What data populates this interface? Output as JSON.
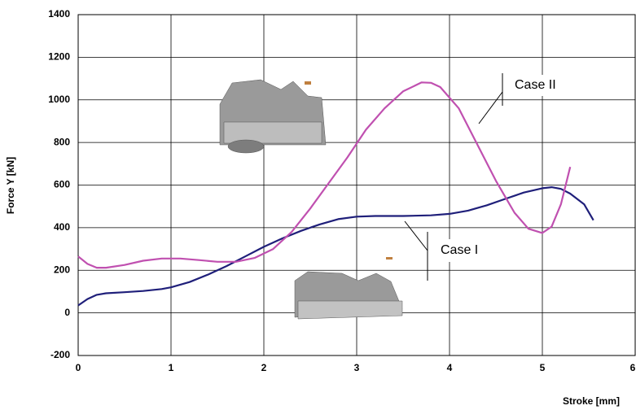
{
  "chart_data": {
    "type": "line",
    "x_label": "Stroke [mm]",
    "y_label": "Force Y [kN]",
    "xlim": [
      0,
      6
    ],
    "xticks": [
      0,
      1,
      2,
      3,
      4,
      5,
      6
    ],
    "ylim": [
      -200,
      1400
    ],
    "yticks": [
      -200,
      0,
      200,
      400,
      600,
      800,
      1000,
      1200,
      1400
    ],
    "grid": true,
    "series": [
      {
        "name": "Case I",
        "color": "#1f1f7a",
        "x": [
          0,
          0.1,
          0.2,
          0.3,
          0.5,
          0.7,
          0.9,
          1.0,
          1.2,
          1.4,
          1.6,
          1.8,
          2.0,
          2.2,
          2.4,
          2.6,
          2.8,
          3.0,
          3.2,
          3.5,
          3.8,
          4.0,
          4.2,
          4.4,
          4.6,
          4.8,
          5.0,
          5.1,
          5.2,
          5.3,
          5.45,
          5.55
        ],
        "values": [
          35,
          65,
          85,
          92,
          97,
          103,
          112,
          120,
          145,
          180,
          220,
          265,
          310,
          350,
          385,
          415,
          440,
          452,
          455,
          455,
          458,
          465,
          480,
          505,
          535,
          565,
          585,
          590,
          582,
          560,
          510,
          435
        ]
      },
      {
        "name": "Case II",
        "color": "#c050b0",
        "x": [
          0,
          0.1,
          0.2,
          0.3,
          0.5,
          0.7,
          0.9,
          1.1,
          1.3,
          1.5,
          1.7,
          1.9,
          2.1,
          2.3,
          2.5,
          2.7,
          2.9,
          3.1,
          3.3,
          3.5,
          3.7,
          3.8,
          3.9,
          4.1,
          4.3,
          4.5,
          4.7,
          4.85,
          5.0,
          5.1,
          5.2,
          5.3
        ],
        "values": [
          265,
          230,
          212,
          212,
          225,
          245,
          255,
          255,
          248,
          240,
          240,
          258,
          300,
          380,
          490,
          610,
          730,
          860,
          960,
          1040,
          1082,
          1080,
          1060,
          960,
          790,
          620,
          470,
          395,
          375,
          405,
          510,
          685
        ]
      }
    ]
  }
}
